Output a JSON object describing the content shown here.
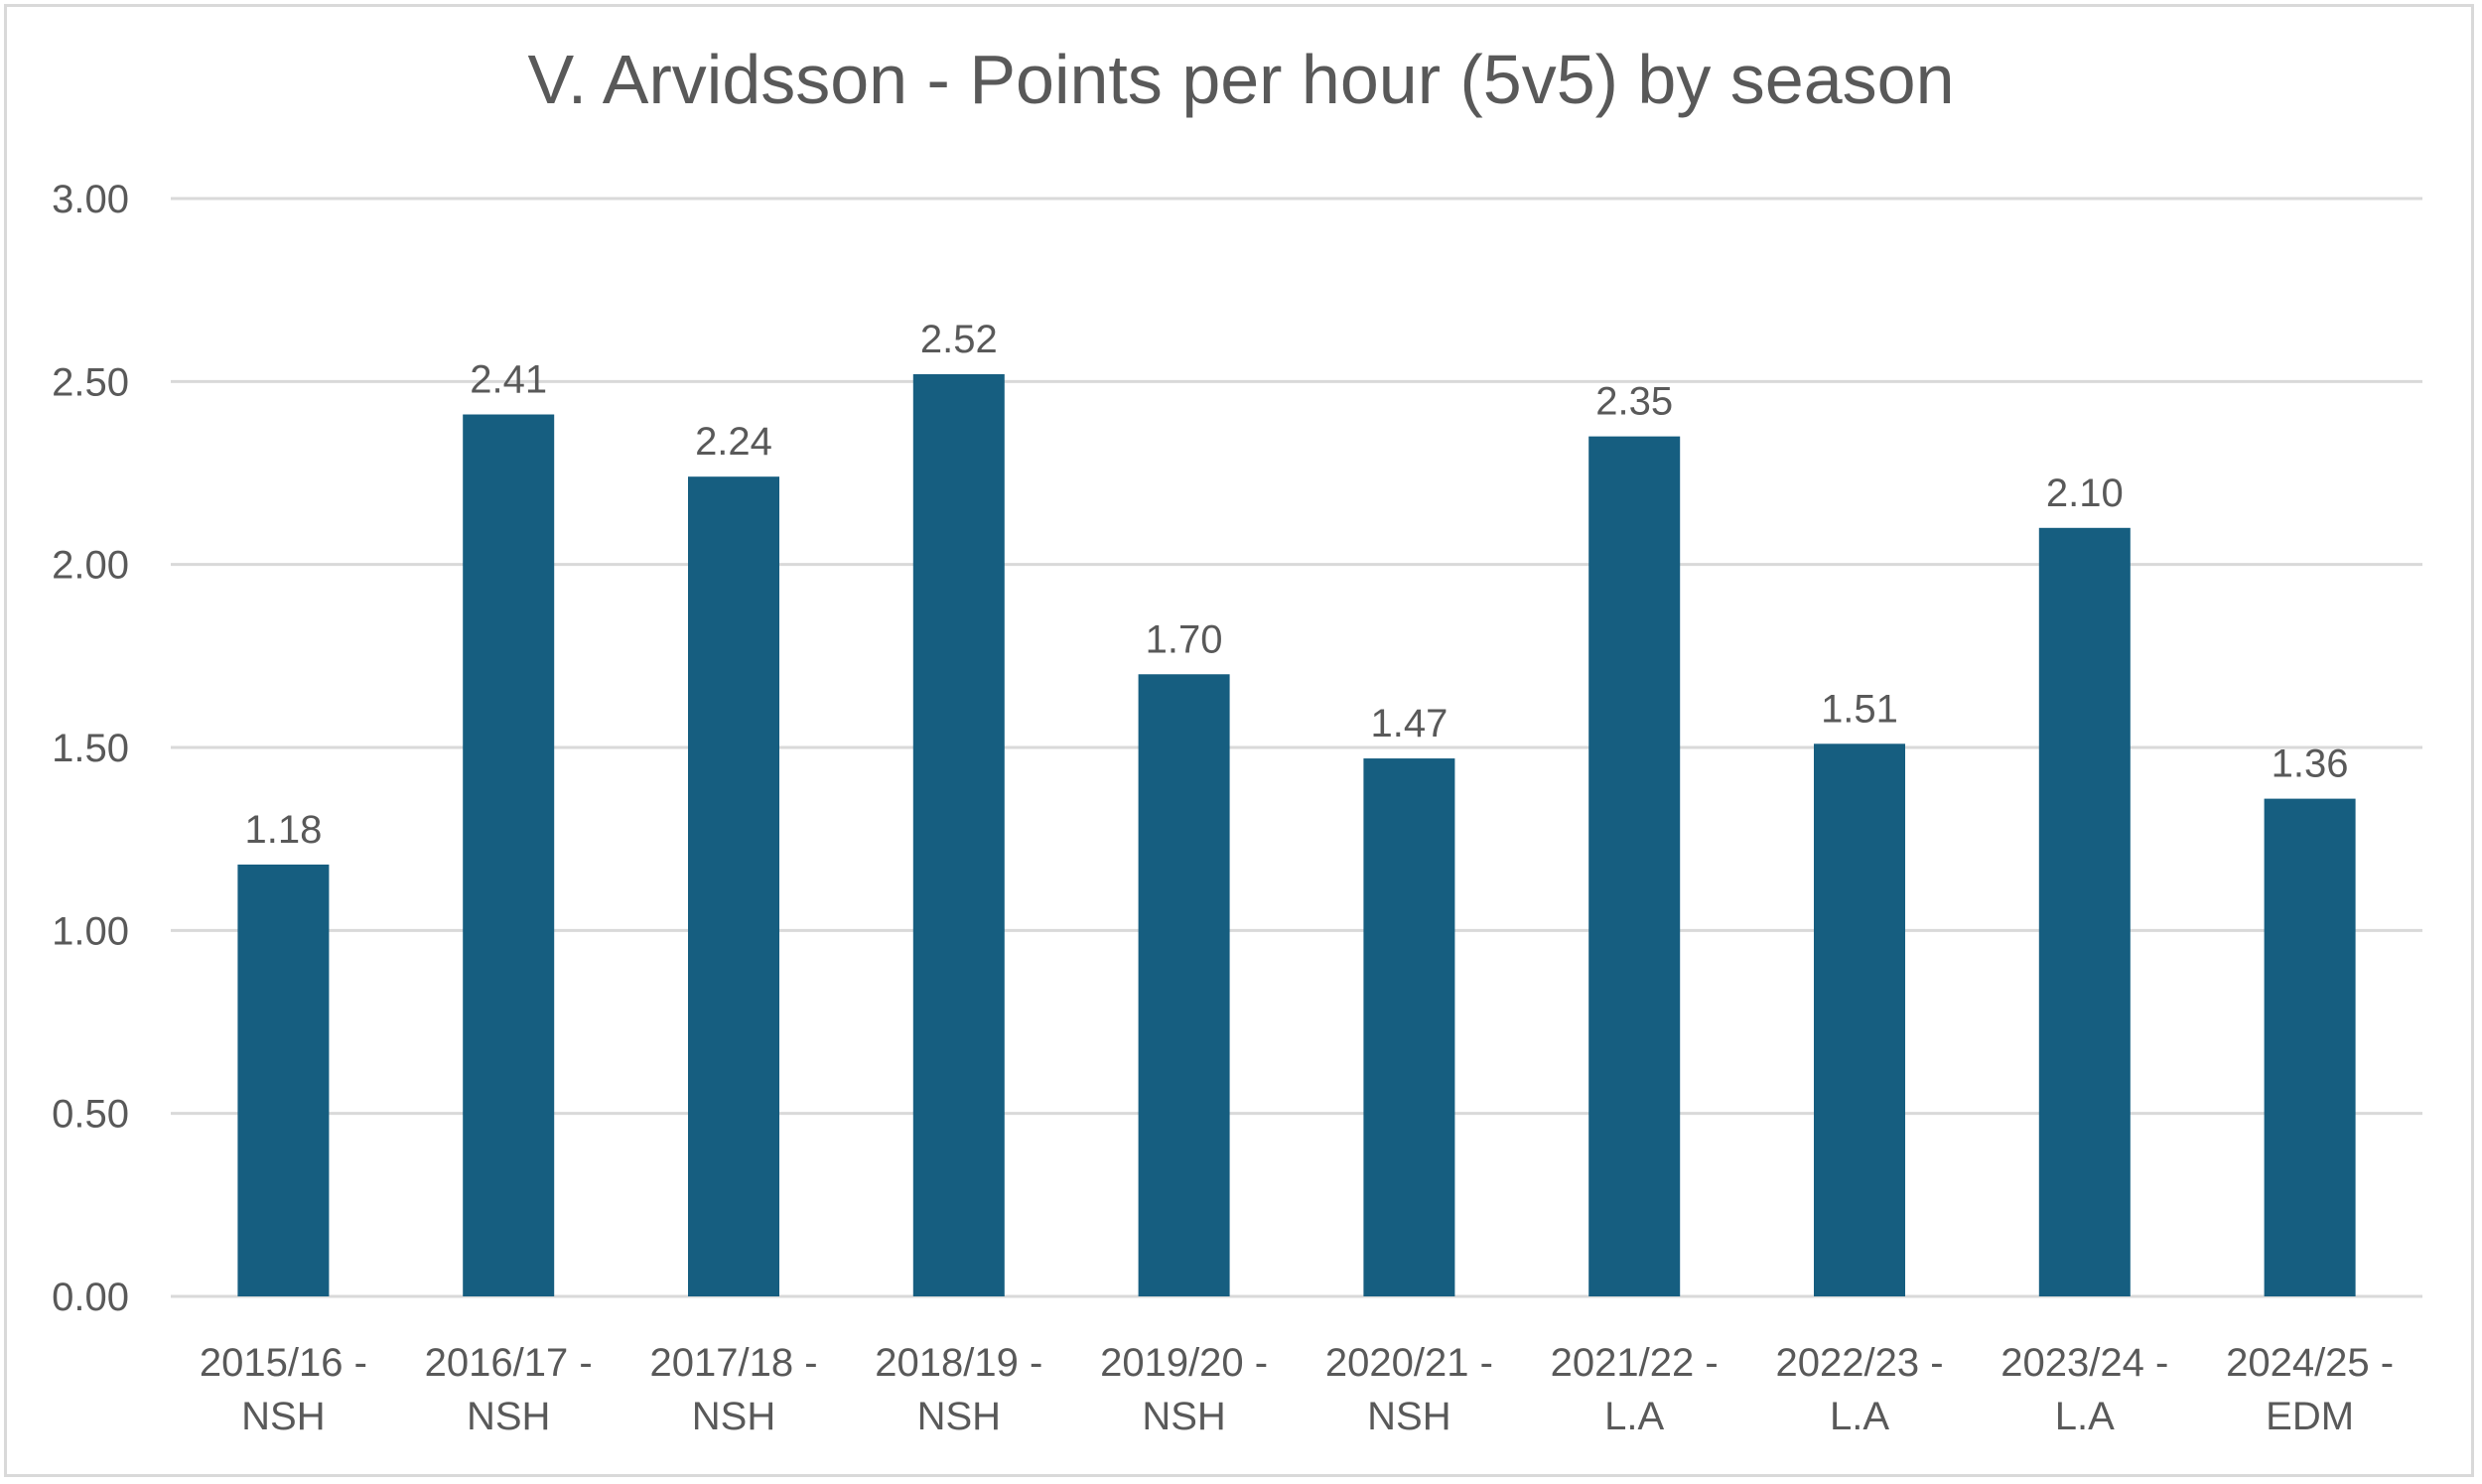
{
  "chart_data": {
    "type": "bar",
    "title": "V. Arvidsson - Points per hour (5v5) by season",
    "xlabel": "",
    "ylabel": "",
    "categories": [
      [
        "2015/16 -",
        "NSH"
      ],
      [
        "2016/17 -",
        "NSH"
      ],
      [
        "2017/18 -",
        "NSH"
      ],
      [
        "2018/19 -",
        "NSH"
      ],
      [
        "2019/20 -",
        "NSH"
      ],
      [
        "2020/21 -",
        "NSH"
      ],
      [
        "2021/22 -",
        "L.A"
      ],
      [
        "2022/23 -",
        "L.A"
      ],
      [
        "2023/24 -",
        "L.A"
      ],
      [
        "2024/25 -",
        "EDM"
      ]
    ],
    "values": [
      1.18,
      2.41,
      2.24,
      2.52,
      1.7,
      1.47,
      2.35,
      1.51,
      2.1,
      1.36
    ],
    "data_labels": [
      "1.18",
      "2.41",
      "2.24",
      "2.52",
      "1.70",
      "1.47",
      "2.35",
      "1.51",
      "2.10",
      "1.36"
    ],
    "ylim": [
      0,
      3
    ],
    "yticks": [
      "0.00",
      "0.50",
      "1.00",
      "1.50",
      "2.00",
      "2.50",
      "3.00"
    ],
    "grid": true,
    "legend": "none",
    "colors": {
      "bar": "#165e80",
      "grid": "#d9d9d9",
      "text": "#595959"
    }
  }
}
